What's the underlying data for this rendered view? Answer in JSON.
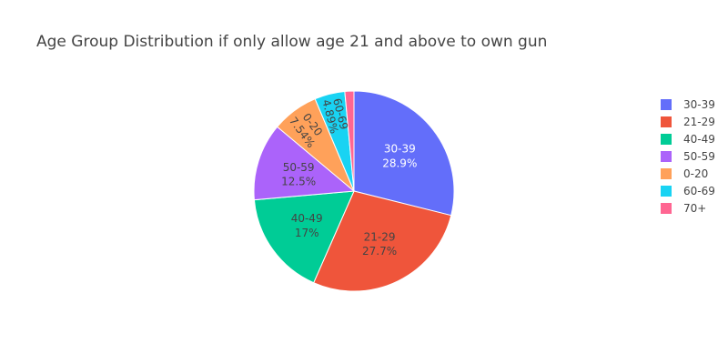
{
  "chart_data": {
    "type": "pie",
    "title": "Age Group Distribution if only allow age 21 and above to own gun",
    "legend_placement": "right",
    "direction": "clockwise",
    "slices": [
      {
        "label": "30-39",
        "percent": 28.9,
        "percent_text": "28.9%",
        "color": "#636efa",
        "text_color": "#ffffff"
      },
      {
        "label": "21-29",
        "percent": 27.7,
        "percent_text": "27.7%",
        "color": "#ef553b",
        "text_color": "#444444"
      },
      {
        "label": "40-49",
        "percent": 17.0,
        "percent_text": "17%",
        "color": "#00cc96",
        "text_color": "#444444"
      },
      {
        "label": "50-59",
        "percent": 12.5,
        "percent_text": "12.5%",
        "color": "#ab63fa",
        "text_color": "#444444"
      },
      {
        "label": "0-20",
        "percent": 7.54,
        "percent_text": "7.54%",
        "color": "#ffa15a",
        "text_color": "#444444"
      },
      {
        "label": "60-69",
        "percent": 4.89,
        "percent_text": "4.89%",
        "color": "#19d3f3",
        "text_color": "#444444"
      },
      {
        "label": "70+",
        "percent": 1.47,
        "percent_text": "",
        "color": "#ff6692",
        "text_color": "#444444"
      }
    ]
  }
}
